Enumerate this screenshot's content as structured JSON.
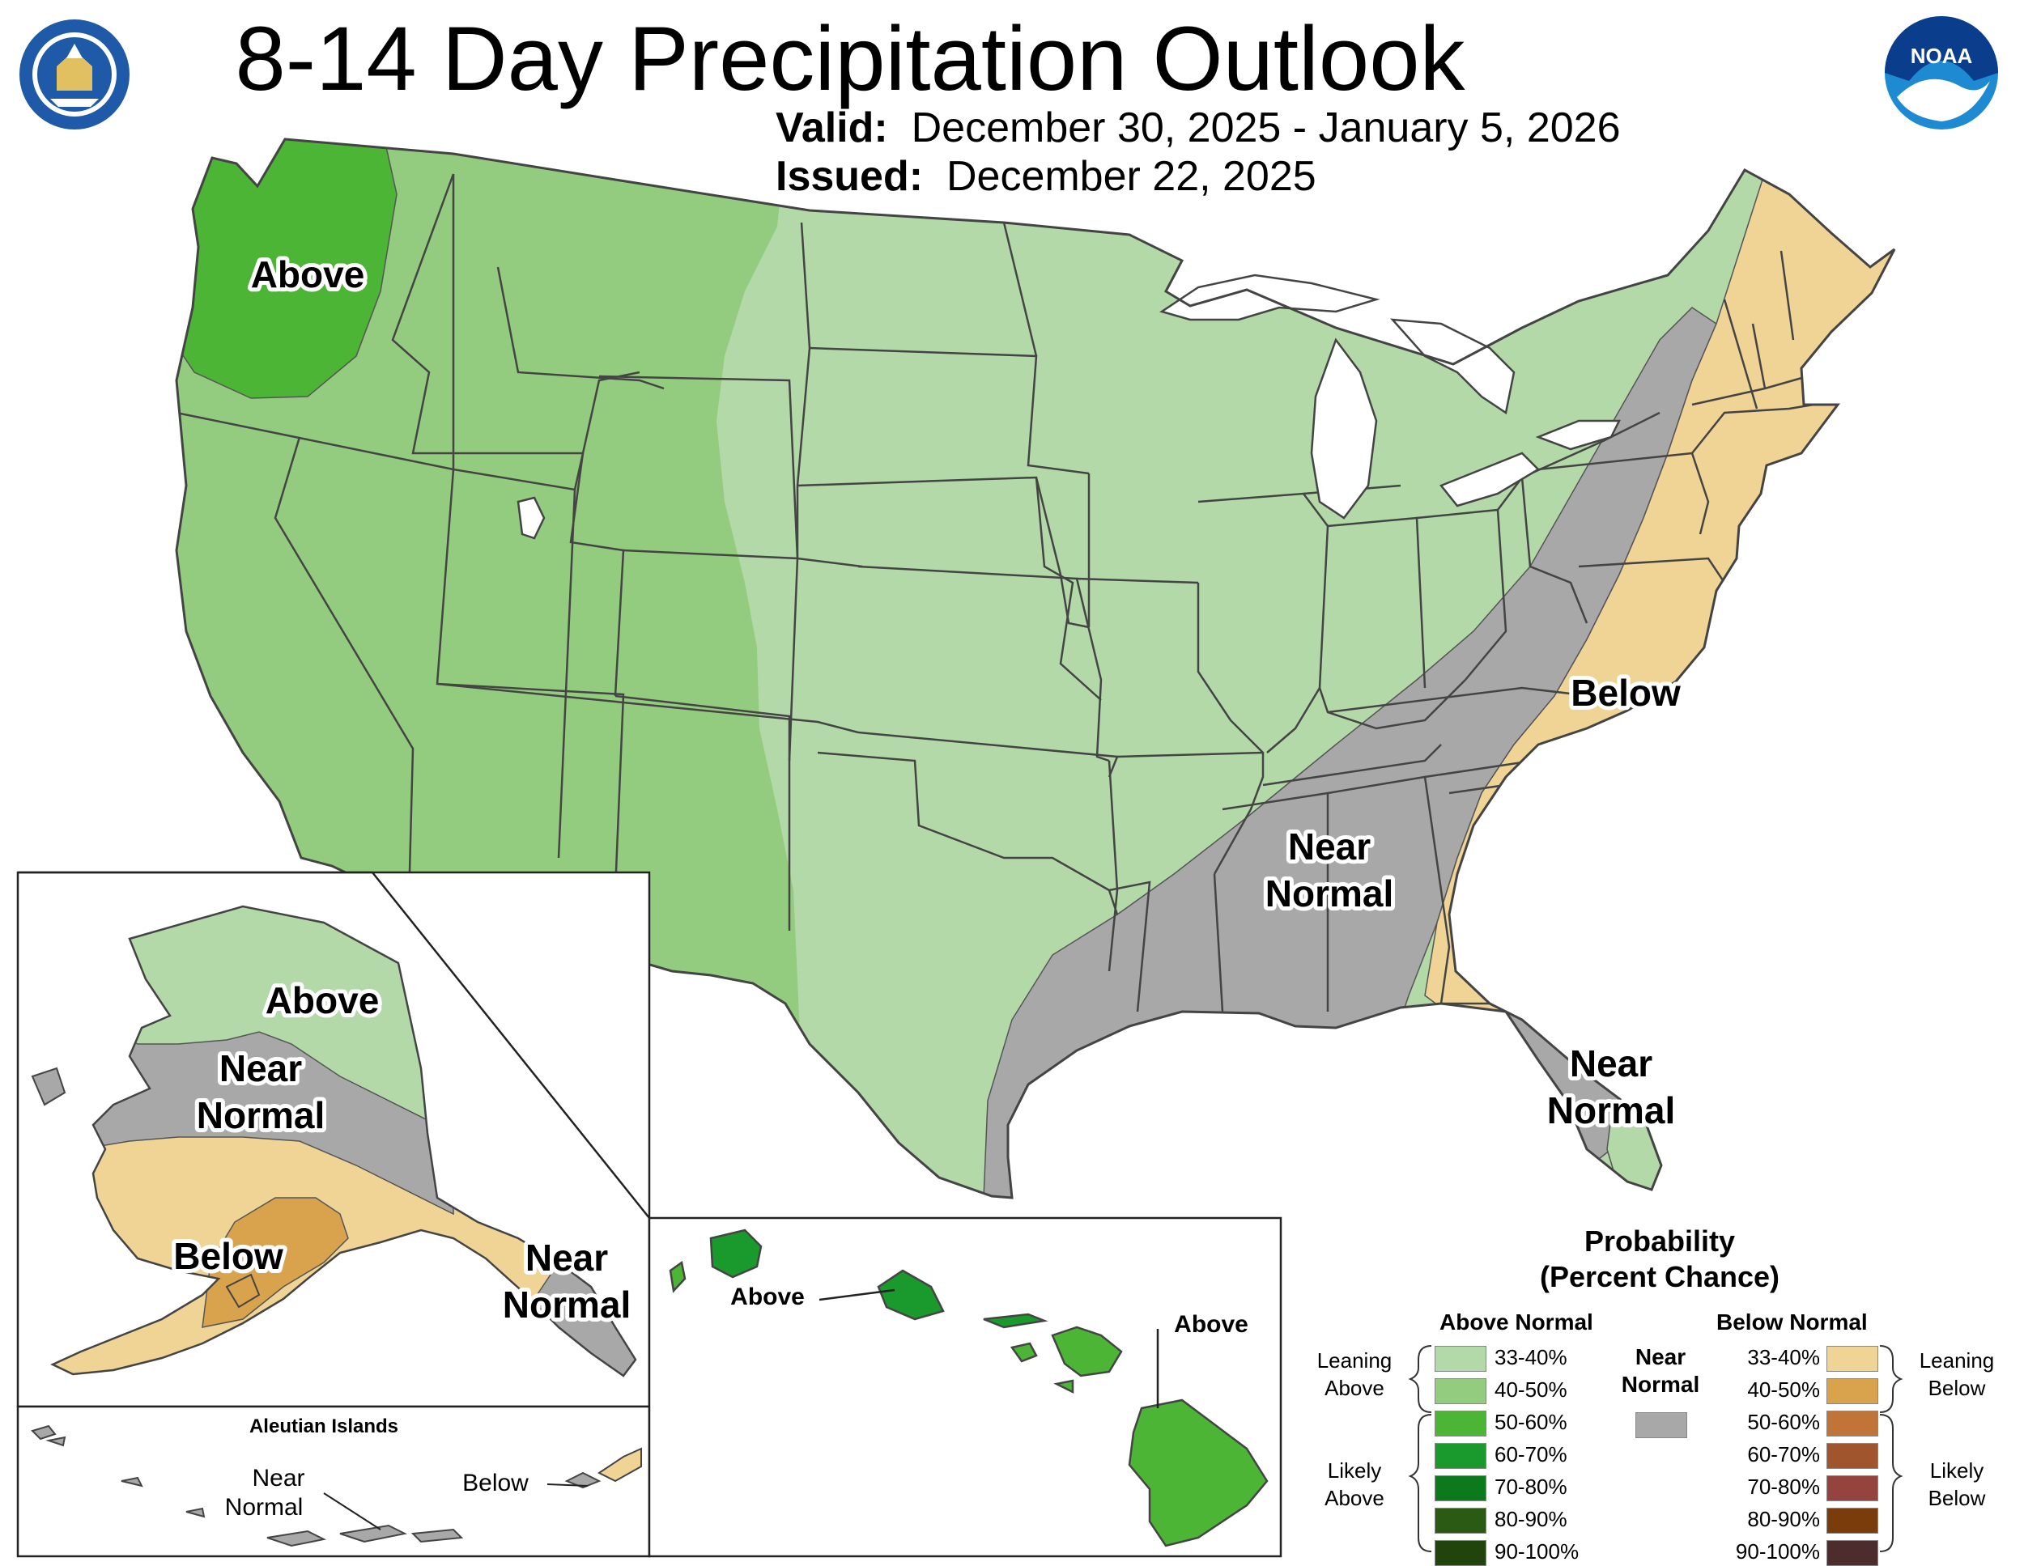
{
  "title": "8-14 Day Precipitation Outlook",
  "valid_label": "Valid:",
  "valid_value": "December 30, 2025 - January 5, 2026",
  "issued_label": "Issued:",
  "issued_value": "December 22, 2025",
  "colors": {
    "leaning_above": "#b4d9a9",
    "above_40_50": "#94cc7f",
    "above_50_60": "#4cb535",
    "above_60_70": "#1a9a2c",
    "above_70_80": "#0c7a1c",
    "above_80_90": "#2a5a14",
    "above_90_100": "#20440c",
    "near_normal": "#a8a8a8",
    "leaning_below": "#f0d496",
    "below_40_50": "#d8a34c",
    "below_50_60": "#c07438",
    "below_60_70": "#a0552c",
    "below_70_80": "#94443c",
    "below_80_90": "#7a3c0a",
    "below_90_100": "#4c2c2c",
    "water": "#ffffff",
    "border": "#444444"
  },
  "conus": {
    "labels": {
      "above": "Above",
      "below": "Below",
      "near_normal_1": "Near",
      "near_normal_2": "Normal",
      "fl_near_1": "Near",
      "fl_near_2": "Normal"
    }
  },
  "alaska": {
    "above": "Above",
    "near_1": "Near",
    "near_2": "Normal",
    "below": "Below",
    "se_near_1": "Near",
    "se_near_2": "Normal",
    "aleutian_title": "Aleutian Islands",
    "aleutian_near_1": "Near",
    "aleutian_near_2": "Normal",
    "aleutian_below": "Below"
  },
  "hawaii": {
    "above_1": "Above",
    "above_2": "Above"
  },
  "legend": {
    "title_1": "Probability",
    "title_2": "(Percent Chance)",
    "above_header": "Above Normal",
    "below_header": "Below Normal",
    "near_header_1": "Near",
    "near_header_2": "Normal",
    "above_bins": [
      "33-40%",
      "40-50%",
      "50-60%",
      "60-70%",
      "70-80%",
      "80-90%",
      "90-100%"
    ],
    "below_bins": [
      "33-40%",
      "40-50%",
      "50-60%",
      "60-70%",
      "70-80%",
      "80-90%",
      "90-100%"
    ],
    "leaning_above_1": "Leaning",
    "leaning_above_2": "Above",
    "likely_above_1": "Likely",
    "likely_above_2": "Above",
    "leaning_below_1": "Leaning",
    "leaning_below_2": "Below",
    "likely_below_1": "Likely",
    "likely_below_2": "Below"
  }
}
